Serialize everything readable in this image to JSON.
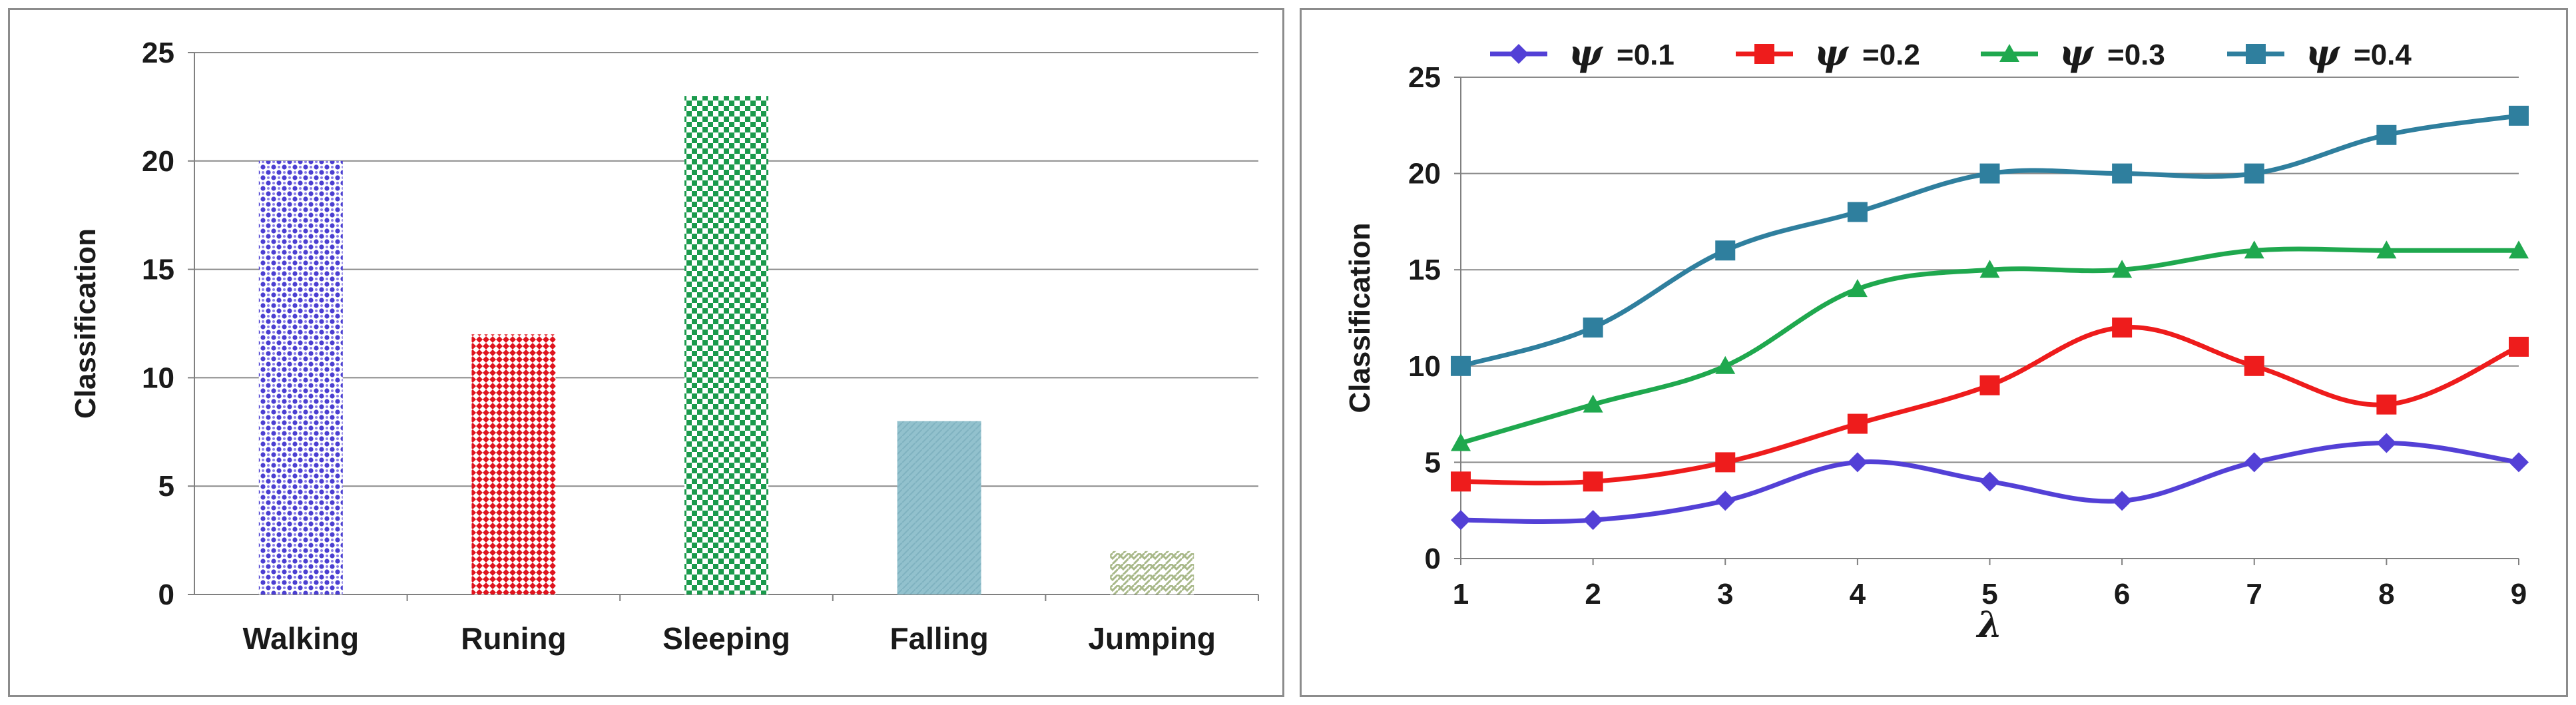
{
  "chart_data": [
    {
      "type": "bar",
      "title": "",
      "xlabel": "",
      "ylabel": "Classification",
      "ylim": [
        0,
        25
      ],
      "yticks": [
        0,
        5,
        10,
        15,
        20,
        25
      ],
      "grid": true,
      "categories": [
        "Walking",
        "Runing",
        "Sleeping",
        "Falling",
        "Jumping"
      ],
      "values": [
        20,
        12,
        23,
        8,
        2
      ],
      "colors": [
        "#4b3fd1",
        "#e0141e",
        "#1a9a4c",
        "#8fbfcc",
        "#a9b98a"
      ]
    },
    {
      "type": "line",
      "title": "",
      "xlabel": "λ",
      "ylabel": "Classification",
      "ylim": [
        0,
        25
      ],
      "yticks": [
        0,
        5,
        10,
        15,
        20,
        25
      ],
      "xlim": [
        1,
        9
      ],
      "grid": true,
      "legend_position": "top",
      "x": [
        1,
        2,
        3,
        4,
        5,
        6,
        7,
        8,
        9
      ],
      "series": [
        {
          "symbol": "ψ",
          "name": "=0.1",
          "marker": "diamond",
          "color": "#5340d6",
          "values": [
            2,
            2,
            3,
            5,
            4,
            3,
            5,
            6,
            5
          ]
        },
        {
          "symbol": "ψ",
          "name": "=0.2",
          "marker": "square",
          "color": "#ee1c1c",
          "values": [
            4,
            4,
            5,
            7,
            9,
            12,
            10,
            8,
            11
          ]
        },
        {
          "symbol": "ψ",
          "name": "=0.3",
          "marker": "triangle",
          "color": "#1fa84e",
          "values": [
            6,
            8,
            10,
            14,
            15,
            15,
            16,
            16,
            16
          ]
        },
        {
          "symbol": "ψ",
          "name": "=0.4",
          "marker": "square",
          "color": "#2f7f9e",
          "values": [
            10,
            12,
            16,
            18,
            20,
            20,
            20,
            22,
            23
          ]
        }
      ]
    }
  ]
}
